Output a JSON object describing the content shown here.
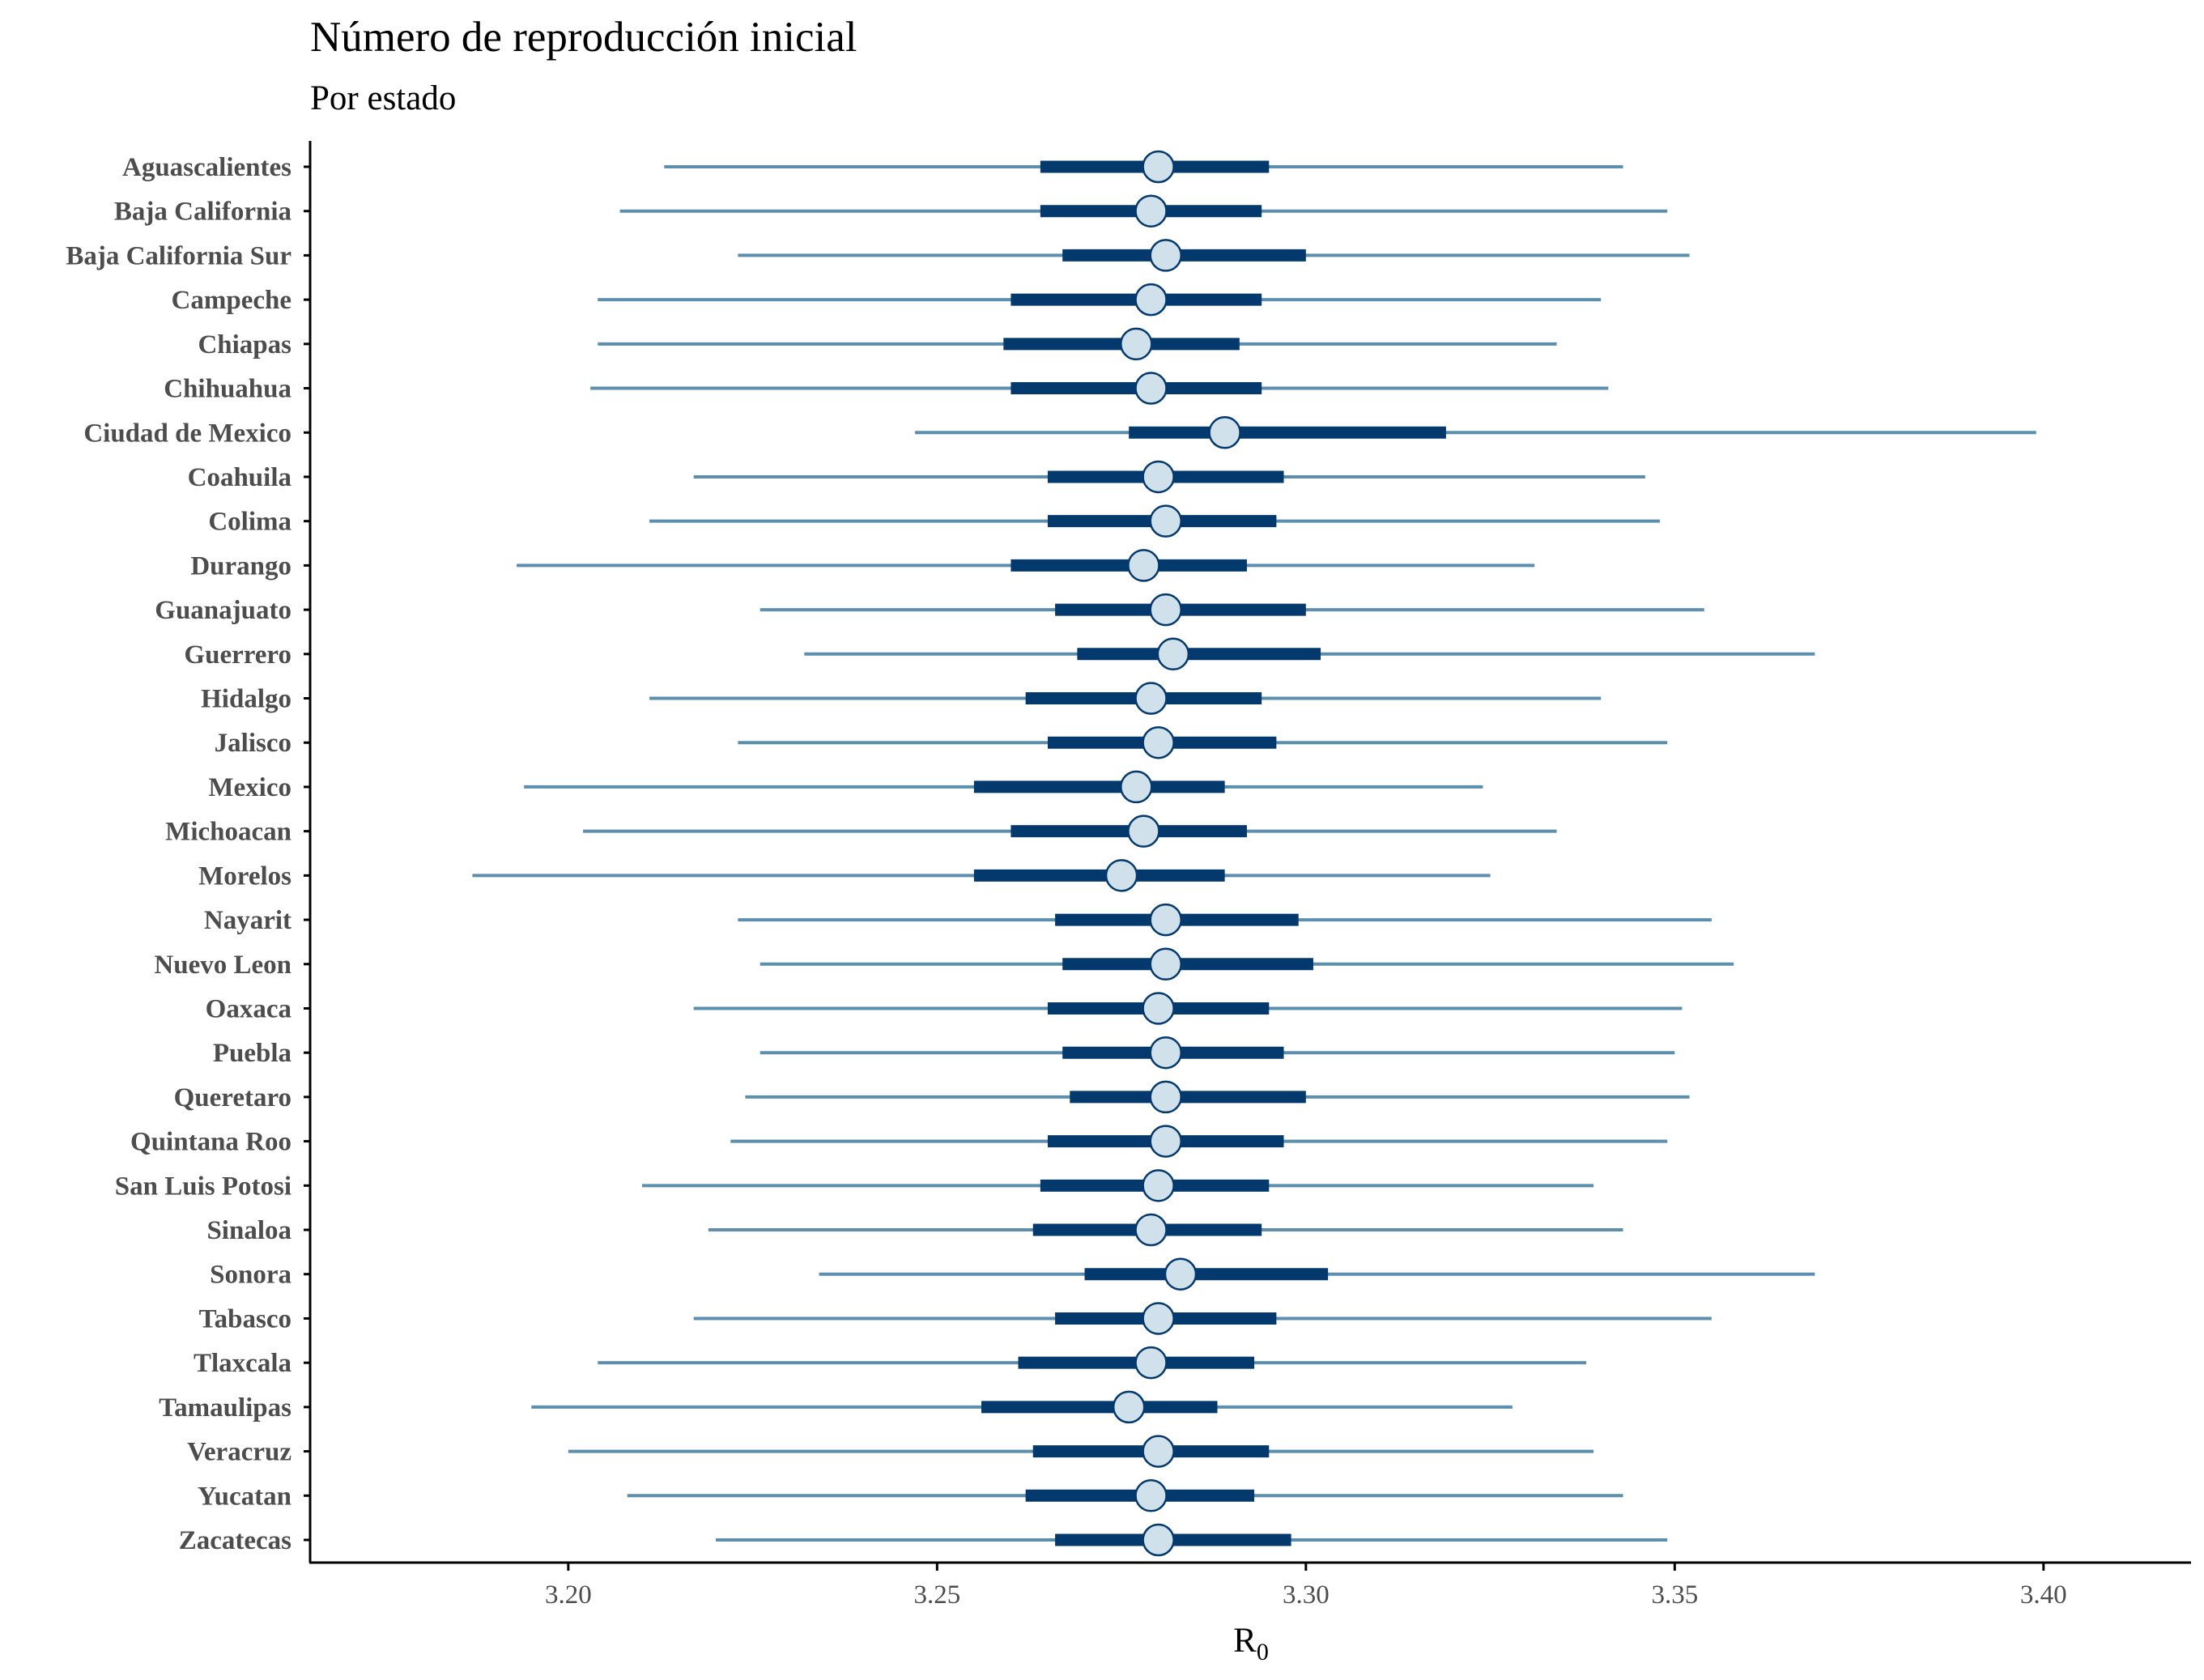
{
  "chart_data": {
    "type": "interval",
    "title": "Número de reproducción inicial",
    "subtitle": "Por estado",
    "xlabel": "R",
    "xlabel_subscript": "0",
    "xlim": [
      3.165,
      3.42
    ],
    "xticks": [
      "3.20",
      "3.25",
      "3.30",
      "3.35",
      "3.40"
    ],
    "xtick_values": [
      3.2,
      3.25,
      3.3,
      3.35,
      3.4
    ],
    "colors": {
      "outer_interval": "#5b8fad",
      "inner_interval": "#03396c",
      "point_fill": "#d1e1ec",
      "point_stroke": "#03396c",
      "axis": "#000000"
    },
    "categories": [
      "Aguascalientes",
      "Baja California",
      "Baja California Sur",
      "Campeche",
      "Chiapas",
      "Chihuahua",
      "Ciudad de Mexico",
      "Coahuila",
      "Colima",
      "Durango",
      "Guanajuato",
      "Guerrero",
      "Hidalgo",
      "Jalisco",
      "Mexico",
      "Michoacan",
      "Morelos",
      "Nayarit",
      "Nuevo Leon",
      "Oaxaca",
      "Puebla",
      "Queretaro",
      "Quintana Roo",
      "San Luis Potosi",
      "Sinaloa",
      "Sonora",
      "Tabasco",
      "Tlaxcala",
      "Tamaulipas",
      "Veracruz",
      "Yucatan",
      "Zacatecas"
    ],
    "series": [
      {
        "median": [
          3.28,
          3.279,
          3.281,
          3.279,
          3.277,
          3.279,
          3.289,
          3.28,
          3.281,
          3.278,
          3.281,
          3.282,
          3.279,
          3.28,
          3.277,
          3.278,
          3.275,
          3.281,
          3.281,
          3.28,
          3.281,
          3.281,
          3.281,
          3.28,
          3.279,
          3.283,
          3.28,
          3.279,
          3.276,
          3.28,
          3.279,
          3.28
        ]
      },
      {
        "inner_low": [
          3.264,
          3.264,
          3.267,
          3.26,
          3.259,
          3.26,
          3.276,
          3.265,
          3.265,
          3.26,
          3.266,
          3.269,
          3.262,
          3.265,
          3.255,
          3.26,
          3.255,
          3.266,
          3.267,
          3.265,
          3.267,
          3.268,
          3.265,
          3.264,
          3.263,
          3.27,
          3.266,
          3.261,
          3.256,
          3.263,
          3.262,
          3.266
        ]
      },
      {
        "inner_high": [
          3.295,
          3.294,
          3.3,
          3.294,
          3.291,
          3.294,
          3.319,
          3.297,
          3.296,
          3.292,
          3.3,
          3.302,
          3.294,
          3.296,
          3.289,
          3.292,
          3.289,
          3.299,
          3.301,
          3.295,
          3.297,
          3.3,
          3.297,
          3.295,
          3.294,
          3.303,
          3.296,
          3.293,
          3.288,
          3.295,
          3.293,
          3.298
        ]
      },
      {
        "outer_low": [
          3.213,
          3.207,
          3.223,
          3.204,
          3.204,
          3.203,
          3.247,
          3.217,
          3.211,
          3.193,
          3.226,
          3.232,
          3.211,
          3.223,
          3.194,
          3.202,
          3.187,
          3.223,
          3.226,
          3.217,
          3.226,
          3.224,
          3.222,
          3.21,
          3.219,
          3.234,
          3.217,
          3.204,
          3.195,
          3.2,
          3.208,
          3.22
        ]
      },
      {
        "outer_high": [
          3.343,
          3.349,
          3.352,
          3.34,
          3.334,
          3.341,
          3.399,
          3.346,
          3.348,
          3.331,
          3.354,
          3.369,
          3.34,
          3.349,
          3.324,
          3.334,
          3.325,
          3.355,
          3.358,
          3.351,
          3.35,
          3.352,
          3.349,
          3.339,
          3.343,
          3.369,
          3.355,
          3.338,
          3.328,
          3.339,
          3.343,
          3.349
        ]
      }
    ]
  }
}
